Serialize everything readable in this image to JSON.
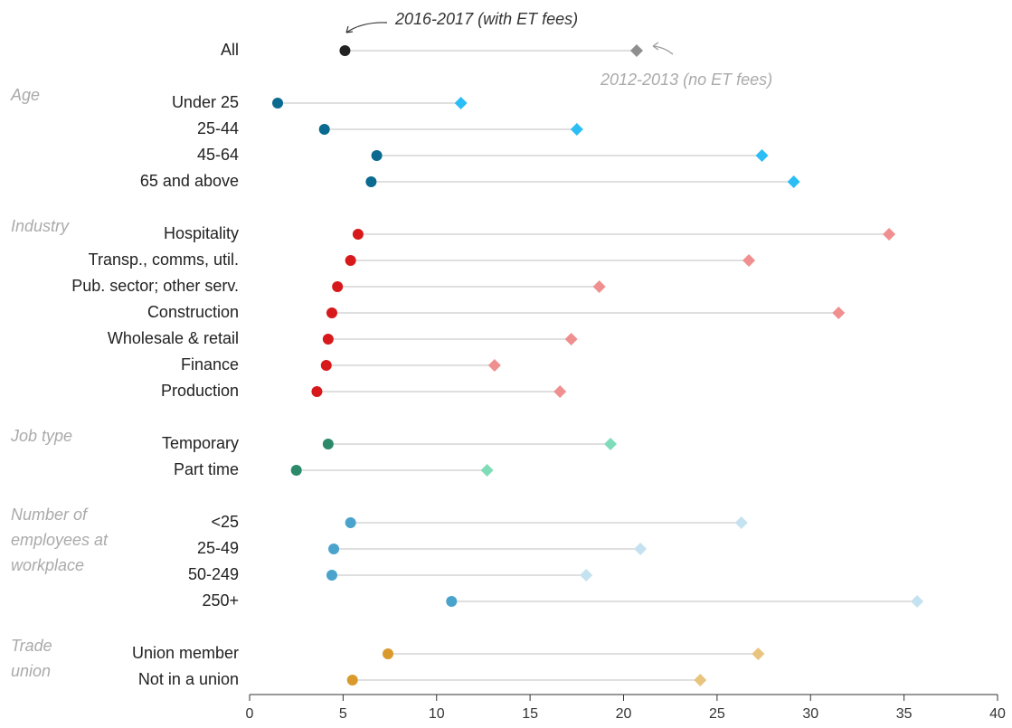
{
  "chart_data": {
    "type": "dumbbell",
    "annotations": [
      "2016-2017 (with ET fees)",
      "2012-2013 (no ET fees)"
    ],
    "xlim": [
      0,
      40
    ],
    "xticks": [
      0,
      5,
      10,
      15,
      20,
      25,
      30,
      35,
      40
    ],
    "groups": [
      {
        "dot_color": "#222222",
        "diamond_color": "#8f8f8f",
        "categories": [
          "All"
        ],
        "values_2016": [
          5.1
        ],
        "values_2012": [
          20.7
        ]
      },
      {
        "label_lines": [
          "Age"
        ],
        "dot_color": "#0b6a8f",
        "diamond_color": "#2bbdf5",
        "categories": [
          "Under 25",
          "25-44",
          "45-64",
          "65 and above"
        ],
        "values_2016": [
          1.5,
          4.0,
          6.8,
          6.5
        ],
        "values_2012": [
          11.3,
          17.5,
          27.4,
          29.1
        ]
      },
      {
        "label_lines": [
          "Industry"
        ],
        "dot_color": "#d7191c",
        "diamond_color": "#f08f8f",
        "categories": [
          "Hospitality",
          "Transp., comms, util.",
          "Pub. sector; other serv.",
          "Construction",
          "Wholesale & retail",
          "Finance",
          "Production"
        ],
        "values_2016": [
          5.8,
          5.4,
          4.7,
          4.4,
          4.2,
          4.1,
          3.6
        ],
        "values_2012": [
          34.2,
          26.7,
          18.7,
          31.5,
          17.2,
          13.1,
          16.6
        ]
      },
      {
        "label_lines": [
          "Job type"
        ],
        "dot_color": "#2a8a6a",
        "diamond_color": "#7fdcb8",
        "categories": [
          "Temporary",
          "Part time"
        ],
        "values_2016": [
          4.2,
          2.5
        ],
        "values_2012": [
          19.3,
          12.7
        ]
      },
      {
        "label_lines": [
          "Number of",
          "employees at",
          "workplace"
        ],
        "dot_color": "#4aa3cc",
        "diamond_color": "#c5e2f0",
        "categories": [
          "<25",
          "25-49",
          "50-249",
          "250+"
        ],
        "values_2016": [
          5.4,
          4.5,
          4.4,
          10.8
        ],
        "values_2012": [
          26.3,
          20.9,
          18.0,
          35.7
        ]
      },
      {
        "label_lines": [
          "Trade",
          "union"
        ],
        "dot_color": "#d99a2b",
        "diamond_color": "#e8c47e",
        "categories": [
          "Union member",
          "Not in a union"
        ],
        "values_2016": [
          7.4,
          5.5
        ],
        "values_2012": [
          27.2,
          24.1
        ]
      }
    ]
  }
}
